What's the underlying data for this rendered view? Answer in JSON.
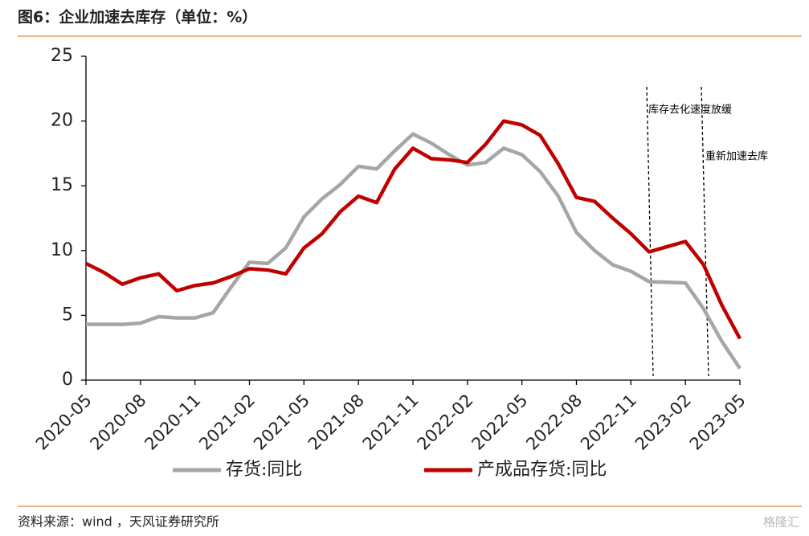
{
  "chart_data": {
    "type": "line",
    "title": "图6：企业加速去库存（单位：%）",
    "source": "资料来源：wind ，天风证券研究所",
    "watermark": "格隆汇",
    "categories": [
      "2020-05",
      null,
      null,
      "2020-08",
      null,
      null,
      "2020-11",
      null,
      null,
      "2021-02",
      null,
      null,
      "2021-05",
      null,
      null,
      "2021-08",
      null,
      null,
      "2021-11",
      null,
      null,
      "2022-02",
      null,
      null,
      "2022-05",
      null,
      null,
      "2022-08",
      null,
      null,
      "2022-11",
      null,
      null,
      "2023-02",
      null,
      null,
      "2023-05"
    ],
    "series": [
      {
        "name": "存货:同比",
        "color": "#a6a6a6",
        "values": [
          4.3,
          4.3,
          4.3,
          4.4,
          4.9,
          4.8,
          4.8,
          5.2,
          7.2,
          9.1,
          9.0,
          10.2,
          12.6,
          14.0,
          15.1,
          16.5,
          16.3,
          17.7,
          19.0,
          18.3,
          17.4,
          16.6,
          16.8,
          17.9,
          17.4,
          16.1,
          14.2,
          11.4,
          10.0,
          8.9,
          8.4,
          7.6,
          7.55,
          7.5,
          5.5,
          3.0,
          0.9
        ]
      },
      {
        "name": "产成品存货:同比",
        "color": "#c00000",
        "values": [
          9.0,
          8.3,
          7.4,
          7.9,
          8.2,
          6.9,
          7.3,
          7.5,
          8.0,
          8.6,
          8.5,
          8.2,
          10.2,
          11.3,
          13.0,
          14.2,
          13.7,
          16.3,
          17.9,
          17.1,
          17.0,
          16.8,
          18.2,
          20.0,
          19.7,
          18.9,
          16.7,
          14.1,
          13.8,
          12.5,
          11.3,
          9.9,
          10.3,
          10.7,
          8.9,
          5.8,
          3.2
        ]
      }
    ],
    "annotations": [
      "库存去化速度放缓",
      "重新加速去库"
    ],
    "ylim": [
      0,
      25
    ],
    "yticks": [
      0,
      5,
      10,
      15,
      20,
      25
    ]
  }
}
